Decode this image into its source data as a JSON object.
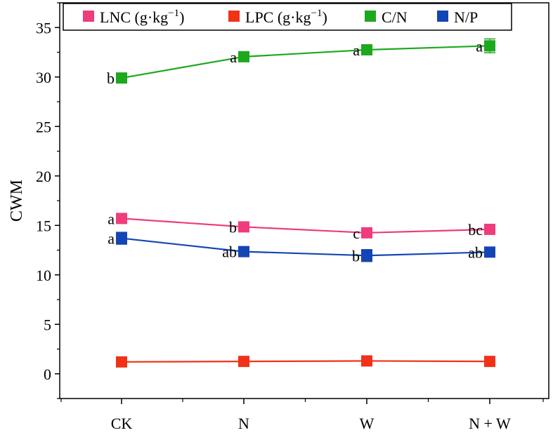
{
  "chart_data": {
    "type": "line",
    "ylabel": "CWM",
    "xlabel": "",
    "ylim": [
      -2.5,
      37.5
    ],
    "yticks": [
      0,
      5,
      10,
      15,
      20,
      25,
      30,
      35
    ],
    "categories": [
      "CK",
      "N",
      "W",
      "N + W"
    ],
    "grid": false,
    "legend_position": "top",
    "series": [
      {
        "key": "LNC",
        "name": "LNC (g·kg",
        "unit_sup": "−1",
        "unit_close": ")",
        "color": "#ee3c7d",
        "values": [
          15.7,
          14.85,
          14.25,
          14.6
        ],
        "errors": [
          0.3,
          0.25,
          0.25,
          0.3
        ],
        "labels": [
          "a",
          "b",
          "c",
          "bc"
        ]
      },
      {
        "key": "LPC",
        "name": "LPC (g·kg",
        "unit_sup": "−1",
        "unit_close": ")",
        "color": "#f03218",
        "values": [
          1.2,
          1.25,
          1.3,
          1.25
        ],
        "errors": [
          0.15,
          0.15,
          0.15,
          0.15
        ],
        "labels": [
          "",
          "",
          "",
          ""
        ]
      },
      {
        "key": "CN",
        "name": "C/N",
        "unit_sup": "",
        "unit_close": "",
        "color": "#1da81d",
        "values": [
          29.9,
          32.05,
          32.75,
          33.15
        ],
        "errors": [
          0.3,
          0.3,
          0.3,
          0.7
        ],
        "labels": [
          "b",
          "a",
          "a",
          "a"
        ]
      },
      {
        "key": "NP",
        "name": "N/P",
        "unit_sup": "",
        "unit_close": "",
        "color": "#1445b4",
        "values": [
          13.7,
          12.35,
          11.95,
          12.3
        ],
        "errors": [
          0.6,
          0.3,
          0.6,
          0.3
        ],
        "labels": [
          "a",
          "ab",
          "b",
          "ab"
        ]
      }
    ]
  }
}
